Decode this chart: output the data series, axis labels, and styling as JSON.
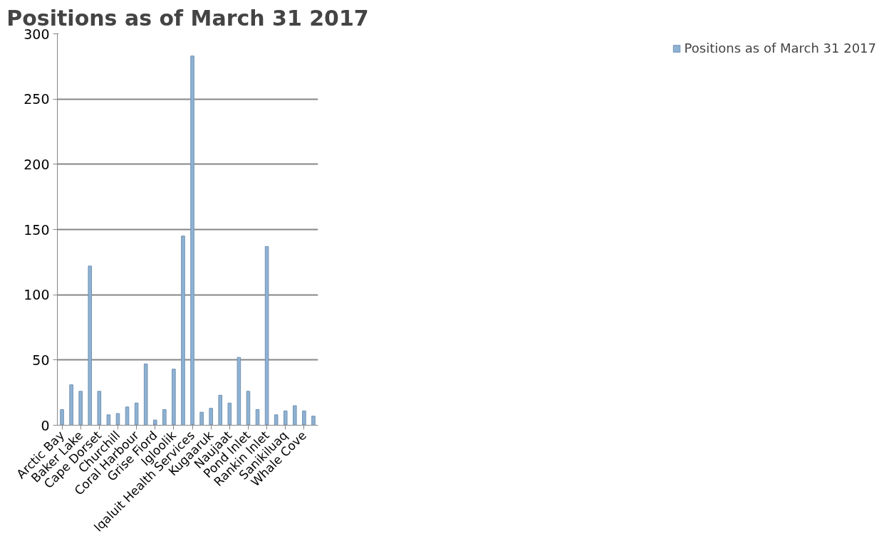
{
  "chart_data": {
    "type": "bar",
    "title": "Positions as of March 31 2017",
    "categories": [
      "Arctic Bay",
      null,
      "Baker Lake",
      null,
      "Cape Dorset",
      null,
      "Churchill",
      null,
      "Coral Harbour",
      null,
      "Grise Fiord",
      null,
      "Igloolik",
      null,
      "Iqaluit Health Services",
      null,
      "Kugaaruk",
      null,
      "Naujaat",
      null,
      "Pond Inlet",
      null,
      "Rankin Inlet",
      null,
      "Sanikiluaq",
      null,
      "Whale Cove",
      null
    ],
    "series": [
      {
        "name": "Positions as of March 31 2017",
        "color": "#8fb2d3",
        "values": [
          12,
          31,
          26,
          122,
          26,
          8,
          9,
          14,
          17,
          47,
          4,
          12,
          43,
          145,
          283,
          10,
          13,
          23,
          17,
          52,
          26,
          12,
          137,
          8,
          11,
          15,
          11,
          7
        ]
      }
    ],
    "ylim": [
      0,
      300
    ],
    "yticks": [
      0,
      50,
      100,
      150,
      200,
      250,
      300
    ],
    "grid": "y",
    "legend": "right"
  }
}
